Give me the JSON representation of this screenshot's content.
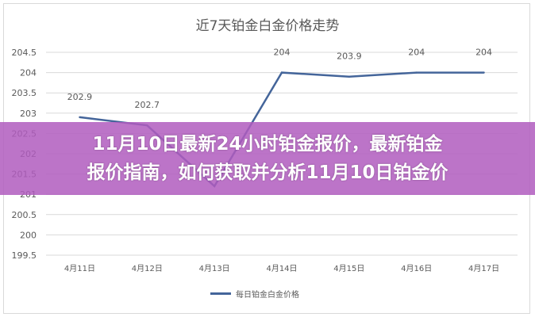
{
  "chart_data": {
    "type": "line",
    "title": "近7天铂金白金价格走势",
    "categories": [
      "4月11日",
      "4月12日",
      "4月13日",
      "4月14日",
      "4月15日",
      "4月16日",
      "4月17日"
    ],
    "series": [
      {
        "name": "每日铂金白金价格",
        "values": [
          202.9,
          202.7,
          201.2,
          204,
          203.9,
          204,
          204
        ],
        "labels": [
          "202.9",
          "202.7",
          "",
          "204",
          "203.9",
          "204",
          "204"
        ]
      }
    ],
    "ylim": [
      199.5,
      204.5
    ],
    "yticks": [
      "199.5",
      "200",
      "200.5",
      "201",
      "201.5",
      "202",
      "202.5",
      "203",
      "203.5",
      "204",
      "204.5"
    ],
    "grid": true,
    "legend": "bottom",
    "line_color": "#44659a"
  },
  "banner": {
    "line1": "11月10日最新24小时铂金报价，最新铂金",
    "line2": "报价指南，如何获取并分析11月10日铂金价",
    "color": "#b05cbe"
  }
}
